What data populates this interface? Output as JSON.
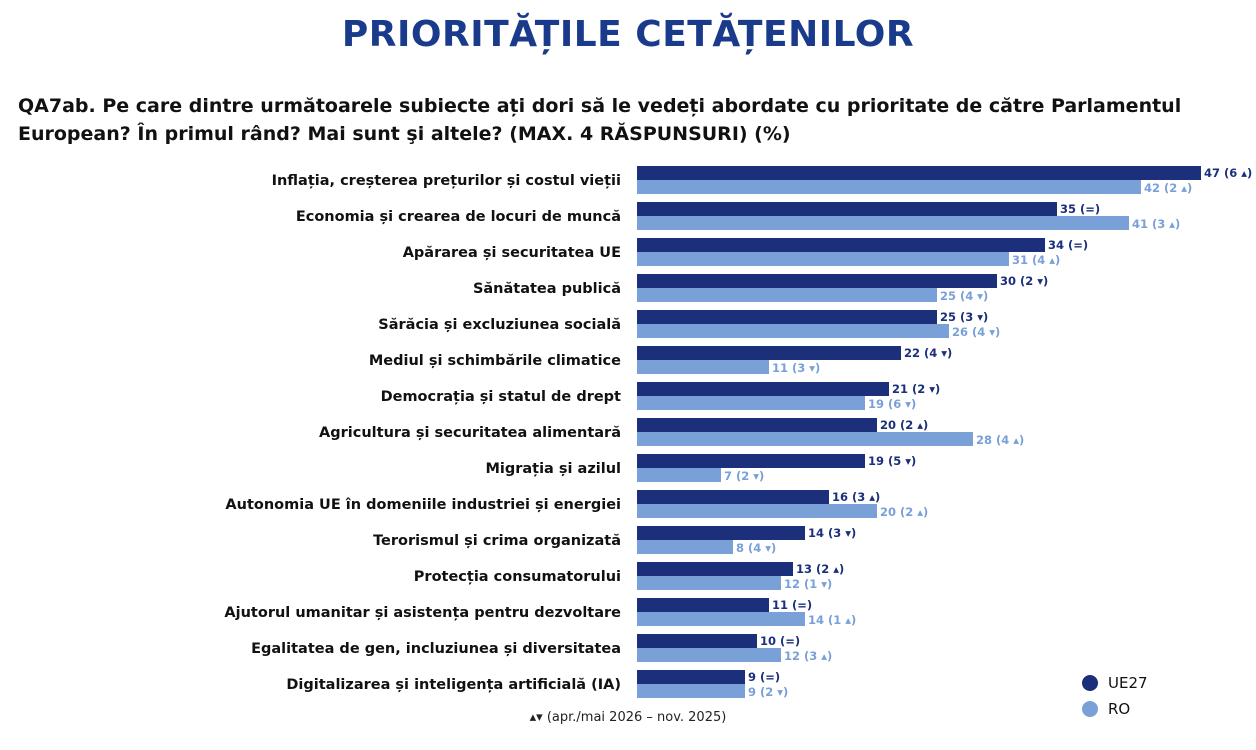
{
  "header": {
    "title": "PRIORITĂȚILE CETĂȚENILOR",
    "question": "QA7ab. Pe care dintre următoarele subiecte ați dori să le vedeți abordate cu prioritate de către Parlamentul European? În primul rând? Mai sunt şi altele? (MAX. 4 RĂSPUNSURI) (%)"
  },
  "colors": {
    "ue27": "#1b2f7a",
    "ro": "#7aa0d8"
  },
  "legend": {
    "ue27": "UE27",
    "ro": "RO"
  },
  "footnote": "▴▾ (apr./mai 2026 – nov. 2025)",
  "chart_data": {
    "type": "bar",
    "orientation": "horizontal",
    "categories": [
      "Inflația, creșterea prețurilor și costul vieții",
      "Economia și crearea de locuri de muncă",
      "Apărarea și securitatea UE",
      "Sănătatea publică",
      "Sărăcia și excluziunea socială",
      "Mediul și schimbările climatice",
      "Democrația și statul de drept",
      "Agricultura și securitatea alimentară",
      "Migrația și azilul",
      "Autonomia UE în domeniile industriei și energiei",
      "Terorismul și crima organizată",
      "Protecția consumatorului",
      "Ajutorul umanitar și asistența pentru dezvoltare",
      "Egalitatea de gen, incluziunea și diversitatea",
      "Digitalizarea și inteligența artificială (IA)"
    ],
    "series": [
      {
        "name": "UE27",
        "values": [
          47,
          35,
          34,
          30,
          25,
          22,
          21,
          20,
          19,
          16,
          14,
          13,
          11,
          10,
          9
        ],
        "labels": [
          "47 (6 ▴)",
          "35 (=)",
          "34 (=)",
          "30 (2 ▾)",
          "25 (3 ▾)",
          "22 (4 ▾)",
          "21 (2 ▾)",
          "20 (2 ▴)",
          "19 (5 ▾)",
          "16 (3 ▴)",
          "14 (3 ▾)",
          "13 (2 ▴)",
          "11 (=)",
          "10 (=)",
          "9 (=)"
        ]
      },
      {
        "name": "RO",
        "values": [
          42,
          41,
          31,
          25,
          26,
          11,
          19,
          28,
          7,
          20,
          8,
          12,
          14,
          12,
          9
        ],
        "labels": [
          "42 (2 ▴)",
          "41 (3 ▴)",
          "31 (4 ▴)",
          "25 (4 ▾)",
          "26 (4 ▾)",
          "11 (3 ▾)",
          "19 (6 ▾)",
          "28 (4 ▴)",
          "7 (2 ▾)",
          "20 (2 ▴)",
          "8 (4 ▾)",
          "12 (1 ▾)",
          "14 (1 ▴)",
          "12 (3 ▴)",
          "9 (2 ▾)"
        ]
      }
    ],
    "xlim": [
      0,
      47
    ],
    "grid": false,
    "legend_position": "bottom-right"
  }
}
